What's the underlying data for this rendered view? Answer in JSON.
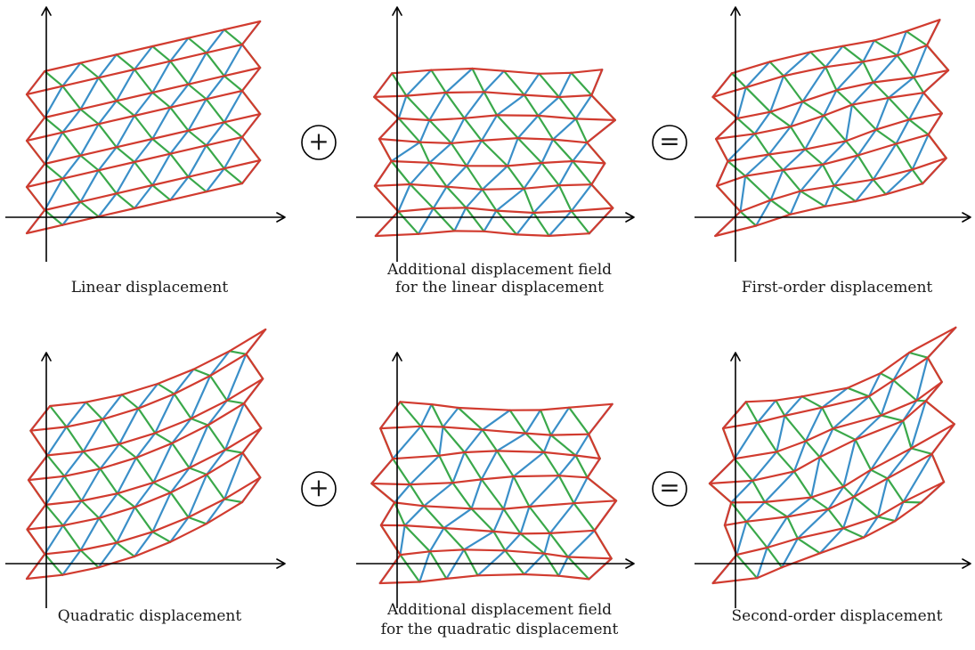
{
  "colors": {
    "background": "#ffffff",
    "axis": "#000000",
    "edge_horizontal": "#d13b2f",
    "edge_diagonal_a": "#3a8fc8",
    "edge_diagonal_b": "#3aa84a",
    "operator": "#000000"
  },
  "operators": {
    "plus": "+",
    "equals": "="
  },
  "panels": [
    {
      "id": "linear",
      "caption": [
        "Linear displacement"
      ],
      "row": 0,
      "col": 0
    },
    {
      "id": "additional-linear",
      "caption": [
        "Additional displacement field",
        "for the linear displacement"
      ],
      "row": 0,
      "col": 1
    },
    {
      "id": "first-order",
      "caption": [
        "First-order displacement"
      ],
      "row": 0,
      "col": 2
    },
    {
      "id": "quadratic",
      "caption": [
        "Quadratic displacement"
      ],
      "row": 1,
      "col": 0
    },
    {
      "id": "additional-quadratic",
      "caption": [
        "Additional displacement field",
        "for the quadratic displacement"
      ],
      "row": 1,
      "col": 1
    },
    {
      "id": "second-order",
      "caption": [
        "Second-order displacement"
      ],
      "row": 1,
      "col": 2
    }
  ],
  "operator_placement": [
    {
      "row": 0,
      "after_col": 0,
      "symbol": "plus"
    },
    {
      "row": 0,
      "after_col": 1,
      "symbol": "equals"
    },
    {
      "row": 1,
      "after_col": 0,
      "symbol": "plus"
    },
    {
      "row": 1,
      "after_col": 1,
      "symbol": "equals"
    }
  ]
}
